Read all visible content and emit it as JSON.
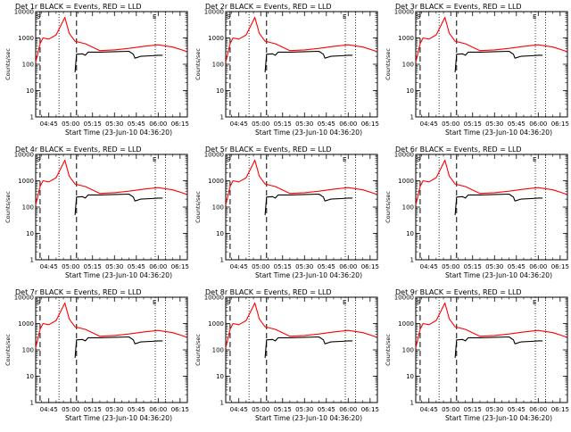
{
  "chart_data": [
    {
      "type": "line",
      "title": "Det 1r BLACK = Events, RED = LLD",
      "xlabel": "Start Time (23-Jun-10 04:36:20)",
      "ylabel": "Counts/sec",
      "yscale": "log",
      "ylim": [
        1,
        10000
      ],
      "xlim": [
        "04:36",
        "06:20"
      ],
      "x_ticks": [
        "04:45",
        "05:00",
        "05:15",
        "05:30",
        "05:45",
        "06:00",
        "06:15"
      ],
      "y_ticks": [
        "1",
        "10",
        "100",
        "1000",
        "10000"
      ],
      "markers": [
        "S",
        "E"
      ],
      "dashed_lines": [
        "04:39",
        "05:04"
      ],
      "dotted_lines": [
        "04:52",
        "05:58",
        "06:05"
      ],
      "series": [
        {
          "color": "#ff0000",
          "x": [
            "04:36",
            "04:39",
            "04:41",
            "04:45",
            "04:50",
            "04:56",
            "04:59",
            "05:03",
            "05:10",
            "05:20",
            "05:30",
            "05:40",
            "05:50",
            "06:00",
            "06:10",
            "06:20"
          ],
          "values": [
            120,
            600,
            1000,
            900,
            1300,
            6000,
            1500,
            750,
            600,
            330,
            350,
            400,
            480,
            550,
            450,
            300
          ]
        },
        {
          "color": "#000000",
          "x": [
            "05:03",
            "05:04",
            "05:08",
            "05:10",
            "05:12",
            "05:20",
            "05:30",
            "05:40",
            "05:43",
            "05:44",
            "05:48",
            "05:55",
            "06:00",
            "06:03"
          ],
          "values": [
            50,
            240,
            250,
            220,
            290,
            290,
            300,
            310,
            240,
            170,
            200,
            210,
            220,
            220
          ]
        }
      ]
    },
    {
      "type": "line",
      "title": "Det 2r BLACK = Events, RED = LLD",
      "xlabel": "Start Time (23-Jun-10 04:36:20)",
      "ylabel": "Counts/sec",
      "yscale": "log",
      "ylim": [
        1,
        10000
      ],
      "xlim": [
        "04:36",
        "06:20"
      ],
      "x_ticks": [
        "04:45",
        "05:00",
        "05:15",
        "05:30",
        "05:45",
        "06:00",
        "06:15"
      ],
      "y_ticks": [
        "1",
        "10",
        "100",
        "1000",
        "10000"
      ],
      "markers": [
        "S",
        "E"
      ],
      "dashed_lines": [
        "04:39",
        "05:04"
      ],
      "dotted_lines": [
        "04:52",
        "05:58",
        "06:05"
      ],
      "series": [
        {
          "color": "#ff0000",
          "x": [
            "04:36",
            "04:39",
            "04:41",
            "04:45",
            "04:50",
            "04:56",
            "04:59",
            "05:03",
            "05:10",
            "05:20",
            "05:30",
            "05:40",
            "05:50",
            "06:00",
            "06:10",
            "06:20"
          ],
          "values": [
            120,
            600,
            1000,
            900,
            1300,
            6000,
            1500,
            750,
            600,
            330,
            350,
            400,
            480,
            550,
            450,
            300
          ]
        },
        {
          "color": "#000000",
          "x": [
            "05:03",
            "05:04",
            "05:08",
            "05:10",
            "05:12",
            "05:20",
            "05:30",
            "05:40",
            "05:43",
            "05:44",
            "05:48",
            "05:55",
            "06:00",
            "06:03"
          ],
          "values": [
            50,
            240,
            250,
            220,
            290,
            290,
            300,
            310,
            240,
            170,
            200,
            210,
            220,
            220
          ]
        }
      ]
    },
    {
      "type": "line",
      "title": "Det 3r BLACK = Events, RED = LLD",
      "xlabel": "Start Time (23-Jun-10 04:36:20)",
      "ylabel": "Counts/sec",
      "yscale": "log",
      "ylim": [
        1,
        10000
      ],
      "xlim": [
        "04:36",
        "06:20"
      ],
      "x_ticks": [
        "04:45",
        "05:00",
        "05:15",
        "05:30",
        "05:45",
        "06:00",
        "06:15"
      ],
      "y_ticks": [
        "1",
        "10",
        "100",
        "1000",
        "10000"
      ],
      "markers": [
        "S",
        "E"
      ],
      "dashed_lines": [
        "04:39",
        "05:04"
      ],
      "dotted_lines": [
        "04:52",
        "05:58",
        "06:05"
      ],
      "series": [
        {
          "color": "#ff0000",
          "x": [
            "04:36",
            "04:39",
            "04:41",
            "04:45",
            "04:50",
            "04:56",
            "04:59",
            "05:03",
            "05:10",
            "05:20",
            "05:30",
            "05:40",
            "05:50",
            "06:00",
            "06:10",
            "06:20"
          ],
          "values": [
            120,
            600,
            1000,
            900,
            1300,
            6000,
            1500,
            750,
            600,
            330,
            350,
            400,
            480,
            550,
            450,
            300
          ]
        },
        {
          "color": "#000000",
          "x": [
            "05:03",
            "05:04",
            "05:08",
            "05:10",
            "05:12",
            "05:20",
            "05:30",
            "05:40",
            "05:43",
            "05:44",
            "05:48",
            "05:55",
            "06:00",
            "06:03"
          ],
          "values": [
            50,
            240,
            250,
            220,
            290,
            290,
            300,
            310,
            240,
            170,
            200,
            210,
            220,
            220
          ]
        }
      ]
    },
    {
      "type": "line",
      "title": "Det 4r BLACK = Events, RED = LLD",
      "xlabel": "Start Time (23-Jun-10 04:36:20)",
      "ylabel": "Counts/sec",
      "yscale": "log",
      "ylim": [
        1,
        10000
      ],
      "xlim": [
        "04:36",
        "06:20"
      ],
      "x_ticks": [
        "04:45",
        "05:00",
        "05:15",
        "05:30",
        "05:45",
        "06:00",
        "06:15"
      ],
      "y_ticks": [
        "1",
        "10",
        "100",
        "1000",
        "10000"
      ],
      "markers": [
        "S",
        "E"
      ],
      "dashed_lines": [
        "04:39",
        "05:04"
      ],
      "dotted_lines": [
        "04:52",
        "05:58",
        "06:05"
      ],
      "series": [
        {
          "color": "#ff0000",
          "x": [
            "04:36",
            "04:39",
            "04:41",
            "04:45",
            "04:50",
            "04:56",
            "04:59",
            "05:03",
            "05:10",
            "05:20",
            "05:30",
            "05:40",
            "05:50",
            "06:00",
            "06:10",
            "06:20"
          ],
          "values": [
            120,
            600,
            1000,
            900,
            1300,
            6000,
            1500,
            750,
            600,
            330,
            350,
            400,
            480,
            550,
            450,
            300
          ]
        },
        {
          "color": "#000000",
          "x": [
            "05:03",
            "05:04",
            "05:08",
            "05:10",
            "05:12",
            "05:20",
            "05:30",
            "05:40",
            "05:43",
            "05:44",
            "05:48",
            "05:55",
            "06:00",
            "06:03"
          ],
          "values": [
            50,
            240,
            250,
            220,
            290,
            290,
            300,
            310,
            240,
            170,
            200,
            210,
            220,
            220
          ]
        }
      ]
    },
    {
      "type": "line",
      "title": "Det 5r BLACK = Events, RED = LLD",
      "xlabel": "Start Time (23-Jun-10 04:36:20)",
      "ylabel": "Counts/sec",
      "yscale": "log",
      "ylim": [
        1,
        10000
      ],
      "xlim": [
        "04:36",
        "06:20"
      ],
      "x_ticks": [
        "04:45",
        "05:00",
        "05:15",
        "05:30",
        "05:45",
        "06:00",
        "06:15"
      ],
      "y_ticks": [
        "1",
        "10",
        "100",
        "1000",
        "10000"
      ],
      "markers": [
        "S",
        "E"
      ],
      "dashed_lines": [
        "04:39",
        "05:04"
      ],
      "dotted_lines": [
        "04:52",
        "05:58",
        "06:05"
      ],
      "series": [
        {
          "color": "#ff0000",
          "x": [
            "04:36",
            "04:39",
            "04:41",
            "04:45",
            "04:50",
            "04:56",
            "04:59",
            "05:03",
            "05:10",
            "05:20",
            "05:30",
            "05:40",
            "05:50",
            "06:00",
            "06:10",
            "06:20"
          ],
          "values": [
            120,
            600,
            1000,
            900,
            1300,
            6000,
            1500,
            750,
            600,
            330,
            350,
            400,
            480,
            550,
            450,
            300
          ]
        },
        {
          "color": "#000000",
          "x": [
            "05:03",
            "05:04",
            "05:08",
            "05:10",
            "05:12",
            "05:20",
            "05:30",
            "05:40",
            "05:43",
            "05:44",
            "05:48",
            "05:55",
            "06:00",
            "06:03"
          ],
          "values": [
            50,
            240,
            250,
            220,
            290,
            290,
            300,
            310,
            240,
            170,
            200,
            210,
            220,
            220
          ]
        }
      ]
    },
    {
      "type": "line",
      "title": "Det 6r BLACK = Events, RED = LLD",
      "xlabel": "Start Time (23-Jun-10 04:36:20)",
      "ylabel": "Counts/sec",
      "yscale": "log",
      "ylim": [
        1,
        10000
      ],
      "xlim": [
        "04:36",
        "06:20"
      ],
      "x_ticks": [
        "04:45",
        "05:00",
        "05:15",
        "05:30",
        "05:45",
        "06:00",
        "06:15"
      ],
      "y_ticks": [
        "1",
        "10",
        "100",
        "1000",
        "10000"
      ],
      "markers": [
        "S",
        "E"
      ],
      "dashed_lines": [
        "04:39",
        "05:04"
      ],
      "dotted_lines": [
        "04:52",
        "05:58",
        "06:05"
      ],
      "series": [
        {
          "color": "#ff0000",
          "x": [
            "04:36",
            "04:39",
            "04:41",
            "04:45",
            "04:50",
            "04:56",
            "04:59",
            "05:03",
            "05:10",
            "05:20",
            "05:30",
            "05:40",
            "05:50",
            "06:00",
            "06:10",
            "06:20"
          ],
          "values": [
            120,
            600,
            1000,
            900,
            1300,
            6000,
            1500,
            750,
            600,
            330,
            350,
            400,
            480,
            550,
            450,
            300
          ]
        },
        {
          "color": "#000000",
          "x": [
            "05:03",
            "05:04",
            "05:08",
            "05:10",
            "05:12",
            "05:20",
            "05:30",
            "05:40",
            "05:43",
            "05:44",
            "05:48",
            "05:55",
            "06:00",
            "06:03"
          ],
          "values": [
            50,
            240,
            250,
            220,
            290,
            290,
            300,
            310,
            240,
            170,
            200,
            210,
            220,
            220
          ]
        }
      ]
    },
    {
      "type": "line",
      "title": "Det 7r BLACK = Events, RED = LLD",
      "xlabel": "Start Time (23-Jun-10 04:36:20)",
      "ylabel": "Counts/sec",
      "yscale": "log",
      "ylim": [
        1,
        10000
      ],
      "xlim": [
        "04:36",
        "06:20"
      ],
      "x_ticks": [
        "04:45",
        "05:00",
        "05:15",
        "05:30",
        "05:45",
        "06:00",
        "06:15"
      ],
      "y_ticks": [
        "1",
        "10",
        "100",
        "1000",
        "10000"
      ],
      "markers": [
        "S",
        "E"
      ],
      "dashed_lines": [
        "04:39",
        "05:04"
      ],
      "dotted_lines": [
        "04:52",
        "05:58",
        "06:05"
      ],
      "series": [
        {
          "color": "#ff0000",
          "x": [
            "04:36",
            "04:39",
            "04:41",
            "04:45",
            "04:50",
            "04:56",
            "04:59",
            "05:03",
            "05:10",
            "05:20",
            "05:30",
            "05:40",
            "05:50",
            "06:00",
            "06:10",
            "06:20"
          ],
          "values": [
            120,
            600,
            1000,
            900,
            1300,
            6000,
            1500,
            750,
            600,
            330,
            350,
            400,
            480,
            550,
            450,
            300
          ]
        },
        {
          "color": "#000000",
          "x": [
            "05:03",
            "05:04",
            "05:08",
            "05:10",
            "05:12",
            "05:20",
            "05:30",
            "05:40",
            "05:43",
            "05:44",
            "05:48",
            "05:55",
            "06:00",
            "06:03"
          ],
          "values": [
            50,
            240,
            250,
            220,
            290,
            290,
            300,
            310,
            240,
            170,
            200,
            210,
            220,
            220
          ]
        }
      ]
    },
    {
      "type": "line",
      "title": "Det 8r BLACK = Events, RED = LLD",
      "xlabel": "Start Time (23-Jun-10 04:36:20)",
      "ylabel": "Counts/sec",
      "yscale": "log",
      "ylim": [
        1,
        10000
      ],
      "xlim": [
        "04:36",
        "06:20"
      ],
      "x_ticks": [
        "04:45",
        "05:00",
        "05:15",
        "05:30",
        "05:45",
        "06:00",
        "06:15"
      ],
      "y_ticks": [
        "1",
        "10",
        "100",
        "1000",
        "10000"
      ],
      "markers": [
        "S",
        "E"
      ],
      "dashed_lines": [
        "04:39",
        "05:04"
      ],
      "dotted_lines": [
        "04:52",
        "05:58",
        "06:05"
      ],
      "series": [
        {
          "color": "#ff0000",
          "x": [
            "04:36",
            "04:39",
            "04:41",
            "04:45",
            "04:50",
            "04:56",
            "04:59",
            "05:03",
            "05:10",
            "05:20",
            "05:30",
            "05:40",
            "05:50",
            "06:00",
            "06:10",
            "06:20"
          ],
          "values": [
            120,
            600,
            1000,
            900,
            1300,
            6000,
            1500,
            750,
            600,
            330,
            350,
            400,
            480,
            550,
            450,
            300
          ]
        },
        {
          "color": "#000000",
          "x": [
            "05:03",
            "05:04",
            "05:08",
            "05:10",
            "05:12",
            "05:20",
            "05:30",
            "05:40",
            "05:43",
            "05:44",
            "05:48",
            "05:55",
            "06:00",
            "06:03"
          ],
          "values": [
            50,
            240,
            250,
            220,
            290,
            290,
            300,
            310,
            240,
            170,
            200,
            210,
            220,
            220
          ]
        }
      ]
    },
    {
      "type": "line",
      "title": "Det 9r BLACK = Events, RED = LLD",
      "xlabel": "Start Time (23-Jun-10 04:36:20)",
      "ylabel": "Counts/sec",
      "yscale": "log",
      "ylim": [
        1,
        10000
      ],
      "xlim": [
        "04:36",
        "06:20"
      ],
      "x_ticks": [
        "04:45",
        "05:00",
        "05:15",
        "05:30",
        "05:45",
        "06:00",
        "06:15"
      ],
      "y_ticks": [
        "1",
        "10",
        "100",
        "1000",
        "10000"
      ],
      "markers": [
        "S",
        "E"
      ],
      "dashed_lines": [
        "04:39",
        "05:04"
      ],
      "dotted_lines": [
        "04:52",
        "05:58",
        "06:05"
      ],
      "series": [
        {
          "color": "#ff0000",
          "x": [
            "04:36",
            "04:39",
            "04:41",
            "04:45",
            "04:50",
            "04:56",
            "04:59",
            "05:03",
            "05:10",
            "05:20",
            "05:30",
            "05:40",
            "05:50",
            "06:00",
            "06:10",
            "06:20"
          ],
          "values": [
            120,
            600,
            1000,
            900,
            1300,
            6000,
            1500,
            750,
            600,
            330,
            350,
            400,
            480,
            550,
            450,
            300
          ]
        },
        {
          "color": "#000000",
          "x": [
            "05:03",
            "05:04",
            "05:08",
            "05:10",
            "05:12",
            "05:20",
            "05:30",
            "05:40",
            "05:43",
            "05:44",
            "05:48",
            "05:55",
            "06:00",
            "06:03"
          ],
          "values": [
            50,
            240,
            250,
            220,
            290,
            290,
            300,
            310,
            240,
            170,
            200,
            210,
            220,
            220
          ]
        }
      ]
    }
  ]
}
